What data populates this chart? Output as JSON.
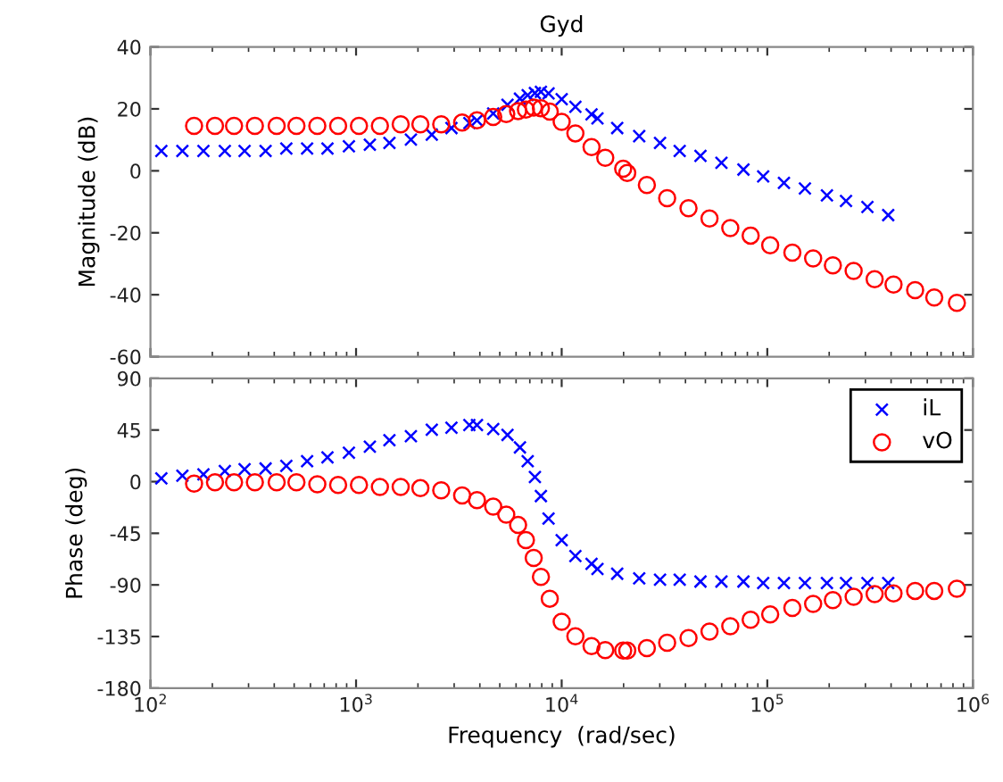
{
  "chart_data": [
    {
      "type": "scatter",
      "title": "Gyd",
      "ylabel": "Magnitude (dB)",
      "log": "x",
      "tick_labels": "y",
      "grid": false,
      "legend": false,
      "xlim": [
        100,
        1000000
      ],
      "xticks": [
        {
          "value": 100,
          "label": null
        },
        {
          "value": 1000,
          "label": null
        },
        {
          "value": 10000,
          "label": null
        },
        {
          "value": 100000,
          "label": null
        },
        {
          "value": 1000000,
          "label": null
        }
      ],
      "ylim": [
        -60,
        40
      ],
      "yticks": [
        -60,
        -40,
        -20,
        0,
        20,
        40
      ],
      "series": [
        {
          "color": "#0000ff",
          "marker": "cross",
          "x": [
            113,
            143,
            181,
            230,
            287,
            363,
            458,
            578,
            726,
            923,
            1167,
            1453,
            1848,
            2335,
            2910,
            3556,
            3873,
            4645,
            5450,
            6266,
            6835,
            7410,
            7925,
            8630,
            10000,
            11660,
            13970,
            14930,
            18620,
            23830,
            30080,
            37490,
            47320,
            59840,
            76560,
            95500,
            120500,
            152400,
            195000,
            241500,
            306900,
            387300
          ],
          "values": [
            6.4,
            6.4,
            6.4,
            6.4,
            6.4,
            6.4,
            7.2,
            7.2,
            7.2,
            7.9,
            8.4,
            9.0,
            10.1,
            11.7,
            13.8,
            15.4,
            16.3,
            18.5,
            21.3,
            23.3,
            24.4,
            25.1,
            25.5,
            25.0,
            23.1,
            20.7,
            18.2,
            16.9,
            13.8,
            11.2,
            9.0,
            6.4,
            4.8,
            2.6,
            0.4,
            -1.8,
            -3.9,
            -5.7,
            -7.9,
            -9.7,
            -11.7,
            -14.3
          ]
        },
        {
          "color": "#ff0000",
          "marker": "circle",
          "x": [
            163,
            206,
            255,
            322,
            411,
            513,
            648,
            818,
            1033,
            1306,
            1648,
            2055,
            2595,
            3281,
            3873,
            4645,
            5375,
            6137,
            6699,
            7311,
            7925,
            8750,
            10000,
            11660,
            13970,
            16290,
            19910,
            20840,
            25960,
            32580,
            41390,
            52360,
            66070,
            82990,
            103300,
            132400,
            167100,
            208400,
            263000,
            332700,
            411100,
            523600,
            648600,
            835600
          ],
          "values": [
            14.5,
            14.5,
            14.5,
            14.5,
            14.5,
            14.5,
            14.5,
            14.5,
            14.5,
            14.5,
            15.0,
            15.0,
            15.0,
            15.6,
            16.3,
            17.4,
            18.3,
            19.3,
            19.8,
            20.4,
            20.2,
            19.1,
            15.8,
            12.1,
            7.7,
            4.2,
            0.7,
            -0.7,
            -4.6,
            -8.8,
            -12.1,
            -15.4,
            -18.5,
            -20.9,
            -24.0,
            -26.4,
            -28.3,
            -30.5,
            -32.3,
            -35.0,
            -36.7,
            -38.5,
            -40.9,
            -42.6
          ]
        }
      ]
    },
    {
      "type": "scatter",
      "xlabel": "Frequency  (rad/sec)",
      "ylabel": "Phase (deg)",
      "log": "x",
      "grid": false,
      "legend": "top right",
      "xlim": [
        100,
        1000000
      ],
      "xticks": [
        {
          "value": 100,
          "label": "10$^{2}$"
        },
        {
          "value": 1000,
          "label": "10$^{3}$"
        },
        {
          "value": 10000,
          "label": "10$^{4}$"
        },
        {
          "value": 100000,
          "label": "10$^{5}$"
        },
        {
          "value": 1000000,
          "label": "10$^{6}$"
        }
      ],
      "ylim": [
        -180,
        90
      ],
      "yticks": [
        -180,
        -135,
        -90,
        -45,
        0,
        45,
        90
      ],
      "series": [
        {
          "name": "iL",
          "color": "#0000ff",
          "marker": "cross",
          "x": [
            113,
            143,
            181,
            230,
            287,
            363,
            458,
            578,
            726,
            923,
            1167,
            1453,
            1848,
            2335,
            2910,
            3556,
            3873,
            4645,
            5450,
            6266,
            6835,
            7410,
            7925,
            8630,
            10000,
            11660,
            13970,
            14930,
            18620,
            23830,
            30080,
            37490,
            47320,
            59840,
            76560,
            95500,
            120500,
            152400,
            195000,
            241500,
            306900,
            387300
          ],
          "values": [
            2.9,
            5.2,
            6.3,
            9.2,
            10.9,
            11.5,
            13.8,
            17.8,
            21.2,
            25.2,
            30.4,
            36.1,
            39.6,
            45.3,
            47.0,
            49.3,
            49.3,
            45.9,
            40.7,
            29.8,
            17.8,
            4.0,
            -12.6,
            -32.1,
            -51.0,
            -64.8,
            -71.7,
            -76.2,
            -80.3,
            -84.3,
            -85.4,
            -85.4,
            -87.1,
            -87.1,
            -87.1,
            -88.3,
            -88.3,
            -88.3,
            -88.3,
            -88.3,
            -88.3,
            -88.3
          ]
        },
        {
          "name": "vO",
          "color": "#ff0000",
          "marker": "circle",
          "x": [
            163,
            206,
            255,
            322,
            411,
            513,
            648,
            818,
            1033,
            1306,
            1648,
            2055,
            2595,
            3281,
            3873,
            4645,
            5375,
            6137,
            6699,
            7311,
            7925,
            8750,
            10000,
            11660,
            13970,
            16290,
            19910,
            20840,
            25960,
            32580,
            41390,
            52360,
            66070,
            82990,
            103300,
            132400,
            167100,
            208400,
            263000,
            332700,
            411100,
            523600,
            648600,
            835600
          ],
          "values": [
            -1.7,
            -0.6,
            -0.6,
            -0.6,
            -0.6,
            -0.6,
            -2.3,
            -2.9,
            -2.9,
            -4.6,
            -4.6,
            -5.7,
            -7.5,
            -12.0,
            -16.1,
            -21.8,
            -28.7,
            -37.8,
            -51.0,
            -66.5,
            -83.1,
            -102.0,
            -122.1,
            -134.7,
            -143.3,
            -146.8,
            -147.3,
            -147.3,
            -145.0,
            -140.4,
            -136.4,
            -130.7,
            -126.1,
            -120.4,
            -115.8,
            -110.1,
            -106.6,
            -103.2,
            -100.3,
            -98.0,
            -97.5,
            -95.2,
            -95.2,
            -93.4
          ]
        }
      ]
    }
  ]
}
